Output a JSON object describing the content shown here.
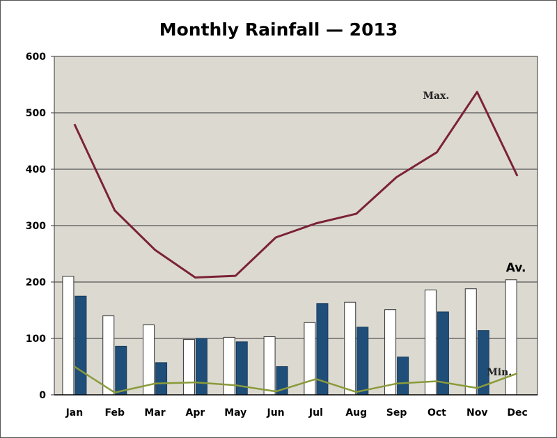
{
  "chart_data": {
    "type": "bar",
    "title": "Monthly Rainfall — 2013",
    "categories": [
      "Jan",
      "Feb",
      "Mar",
      "Apr",
      "May",
      "Jun",
      "Jul",
      "Aug",
      "Sep",
      "Oct",
      "Nov",
      "Dec"
    ],
    "ylim": [
      0,
      600
    ],
    "yticks": [
      "0",
      "100",
      "200",
      "300",
      "400",
      "500",
      "600"
    ],
    "grid": true,
    "bar_series": [
      {
        "values": [
          210,
          140,
          124,
          98,
          102,
          103,
          128,
          164,
          151,
          186,
          188,
          204
        ],
        "color": "#ffffff"
      },
      {
        "values": [
          175,
          86,
          57,
          100,
          94,
          50,
          162,
          120,
          67,
          147,
          114,
          null
        ],
        "color": "#1f4e79"
      }
    ],
    "line_series": [
      {
        "name": "Max.",
        "values": [
          480,
          327,
          257,
          208,
          211,
          279,
          304,
          321,
          386,
          430,
          537,
          388
        ],
        "color": "#7b2236"
      },
      {
        "name": "Min.",
        "values": [
          50,
          4,
          20,
          22,
          17,
          6,
          28,
          5,
          20,
          24,
          12,
          38
        ],
        "color": "#8a9a3a"
      }
    ],
    "annotations": [
      {
        "text": "Max.",
        "series": "max"
      },
      {
        "text": "Av.",
        "series": "average"
      },
      {
        "text": "Min.",
        "series": "min"
      }
    ],
    "colors": {
      "plot_bg": "#dcd9d0",
      "grid": "#555555"
    }
  }
}
